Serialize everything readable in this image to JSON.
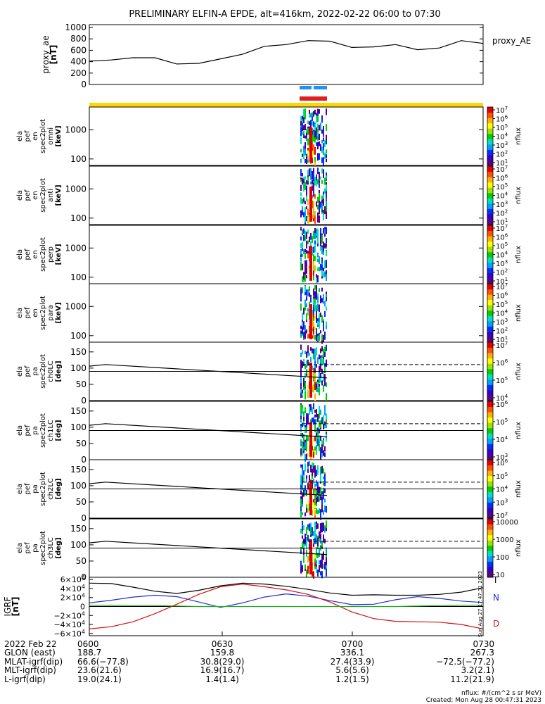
{
  "title": "PRELIMINARY ELFIN-A EPDE, alt=416km, 2022-02-22 06:00 to 07:30",
  "colors": {
    "orbit_bar": "#ffd700",
    "blue_bar": "#1e90ff",
    "red_bar": "#e02020",
    "grf_x": "#000000",
    "grf_y": "#2030d0",
    "grf_z": "#d01010",
    "grf_total": "#20b020"
  },
  "colorbar_colors": [
    "#ffffff",
    "#5a0080",
    "#3a00c0",
    "#0030ff",
    "#00a0ff",
    "#00e0c0",
    "#00d000",
    "#a0e000",
    "#ffff00",
    "#ffb000",
    "#ff5000",
    "#e00000"
  ],
  "chart_data": [
    {
      "type": "line",
      "name": "proxy_ae",
      "ylabel_lines": [
        "proxy_ae",
        "[nT]"
      ],
      "right_label": "proxy_AE",
      "ylim": [
        0,
        1050
      ],
      "yticks": [
        "1000",
        "800",
        "600",
        "400",
        "200",
        "0"
      ],
      "x": [
        "06:00",
        "06:05",
        "06:10",
        "06:15",
        "06:20",
        "06:25",
        "06:30",
        "06:35",
        "06:40",
        "06:45",
        "06:50",
        "06:55",
        "07:00",
        "07:05",
        "07:10",
        "07:15",
        "07:20",
        "07:25",
        "07:30"
      ],
      "values": [
        410,
        430,
        470,
        470,
        360,
        370,
        450,
        530,
        670,
        700,
        770,
        760,
        650,
        660,
        700,
        610,
        640,
        770,
        720
      ]
    },
    {
      "type": "heatmap",
      "name": "energy spectrogram panels",
      "yscale": "log",
      "ylim_keV": [
        60,
        6000
      ],
      "yticks": [
        "1000",
        "100"
      ],
      "panels": [
        {
          "ylabel_lines": [
            "ela",
            "pef",
            "en",
            "spec2plot",
            "omni",
            "[keV]"
          ],
          "colorbar_ticks": [
            "10^7",
            "10^6",
            "10^5",
            "10^4",
            "10^3",
            "10^2",
            "10^1"
          ],
          "colorbar_label": "nflux"
        },
        {
          "ylabel_lines": [
            "ela",
            "pef",
            "en",
            "spec2plot",
            "anti",
            "[keV]"
          ],
          "colorbar_ticks": [
            "10^7",
            "10^6",
            "10^5",
            "10^4",
            "10^3",
            "10^2",
            "10^1"
          ],
          "colorbar_label": "nflux"
        },
        {
          "ylabel_lines": [
            "ela",
            "pef",
            "en",
            "spec2plot",
            "perp",
            "[keV]"
          ],
          "colorbar_ticks": [
            "10^7",
            "10^6",
            "10^5",
            "10^4",
            "10^3",
            "10^2",
            "10^1"
          ],
          "colorbar_label": "nflux"
        },
        {
          "ylabel_lines": [
            "ela",
            "pef",
            "en",
            "spec2plot",
            "para",
            "[keV]"
          ],
          "colorbar_ticks": [
            "10^7",
            "10^6",
            "10^5",
            "10^4",
            "10^3",
            "10^2",
            "10^1"
          ],
          "colorbar_label": "nflux"
        }
      ]
    },
    {
      "type": "heatmap",
      "name": "pitch angle spectrogram panels",
      "ylim_deg": [
        0,
        180
      ],
      "yticks": [
        "150",
        "100",
        "50",
        "0"
      ],
      "panels": [
        {
          "ylabel_lines": [
            "ela",
            "pef",
            "pa",
            "spec2plot",
            "ch0LC",
            "[deg]"
          ],
          "colorbar_ticks": [
            "10^7",
            "10^6",
            "10^5",
            "10^4"
          ],
          "colorbar_label": "nflux"
        },
        {
          "ylabel_lines": [
            "ela",
            "pef",
            "pa",
            "spec2plot",
            "ch1LC",
            "[deg]"
          ],
          "colorbar_ticks": [
            "10^6",
            "10^5",
            "10^4",
            "10^3"
          ],
          "colorbar_label": "nflux"
        },
        {
          "ylabel_lines": [
            "ela",
            "pef",
            "pa",
            "spec2plot",
            "ch2LC",
            "[deg]"
          ],
          "colorbar_ticks": [
            "10^6",
            "10^5",
            "10^4",
            "10^3",
            "10^2"
          ],
          "colorbar_label": "nflux"
        },
        {
          "ylabel_lines": [
            "ela",
            "pef",
            "pa",
            "spec2plot",
            "ch3LC",
            "[deg]"
          ],
          "colorbar_ticks": [
            "10000",
            "1000",
            "100",
            "10"
          ],
          "colorbar_label": "nflux"
        }
      ]
    },
    {
      "type": "line",
      "name": "igrf",
      "ylabel_lines": [
        "IGRF",
        "[nT]"
      ],
      "ylim": [
        -65000,
        65000
      ],
      "yticks": [
        "6×10^4",
        "4×10^4",
        "2×10^4",
        "0",
        "−2×10^4",
        "−4×10^4",
        "−6×10^4"
      ],
      "legend": [
        "T",
        "N",
        "D"
      ],
      "x": [
        "06:00",
        "06:05",
        "06:10",
        "06:15",
        "06:20",
        "06:25",
        "06:30",
        "06:35",
        "06:40",
        "06:45",
        "06:50",
        "06:55",
        "07:00",
        "07:05",
        "07:10",
        "07:15",
        "07:20",
        "07:25",
        "07:30"
      ],
      "series": [
        {
          "values": [
            52000,
            51000,
            43000,
            34000,
            29000,
            36000,
            46000,
            52000,
            50000,
            45000,
            38000,
            30000,
            25000,
            26000,
            25000,
            25000,
            27000,
            32000,
            42000
          ]
        },
        {
          "values": [
            8000,
            14000,
            21000,
            25000,
            22000,
            10000,
            -2000,
            8000,
            21000,
            28000,
            23000,
            13000,
            4000,
            5000,
            15000,
            22000,
            18000,
            12000,
            9000
          ]
        },
        {
          "values": [
            -50000,
            -45000,
            -34000,
            -16000,
            5000,
            27000,
            44000,
            50000,
            44000,
            37000,
            27000,
            10000,
            -12000,
            -27000,
            -33000,
            -34000,
            -35000,
            -40000,
            -50000
          ]
        },
        {
          "values": [
            3000,
            3000,
            2000,
            2000,
            1000,
            0,
            0,
            0,
            0,
            0,
            0,
            0,
            0,
            0,
            0,
            1000,
            2000,
            3000,
            3000
          ]
        }
      ]
    }
  ],
  "orbit_rows": {
    "labels": [
      "2022 Feb 22",
      "GLON (east)",
      "MLAT-igrf(dip)",
      "MLT-igrf(dip)",
      "L-igrf(dip)"
    ],
    "columns": [
      {
        "time": "0600",
        "values": [
          "188.7",
          "66.6(−77.8)",
          "23.6(21.6)",
          "19.0(24.1)"
        ]
      },
      {
        "time": "0630",
        "values": [
          "159.8",
          "30.8(29.0)",
          "16.9(16.7)",
          "1.4(1.4)"
        ]
      },
      {
        "time": "0700",
        "values": [
          "336.1",
          "27.4(33.9)",
          "5.6(5.6)",
          "1.2(1.5)"
        ]
      },
      {
        "time": "0730",
        "values": [
          "267.3",
          "−72.5(−77.2)",
          "3.2(2.1)",
          "11.2(21.9)"
        ]
      }
    ]
  },
  "footer": {
    "units": "nflux: #/(cm^2 s sr MeV)",
    "created": "Created: Mon Aug 28 00:47:31 2023",
    "side_stamp": "Sun Aug 27 17:47:31 2023"
  }
}
